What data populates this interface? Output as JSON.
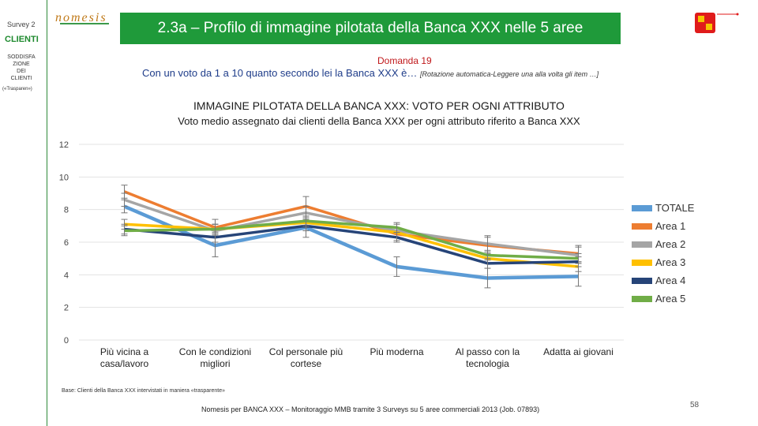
{
  "sidebar": {
    "survey": "Survey 2",
    "clienti": "CLIENTI",
    "soddisfazione": "SODDISFA\nZIONE\nDEI\nCLIENTI",
    "trasparenza": "(«Trasparen»)"
  },
  "header": {
    "logo_text": "nomesis",
    "title": "2.3a – Profilo di immagine pilotata della Banca XXX nelle 5 aree"
  },
  "question": {
    "label": "Domanda 19",
    "text": "Con un voto da 1 a 10 quanto secondo lei la Banca XXX è…",
    "note": "[Rotazione automatica-Leggere una alla volta gli item …]"
  },
  "footer": {
    "base": "Base: Clienti della Banca XXX intervistati in maniera «trasparente»",
    "credit": "Nomesis per BANCA XXX – Monitoraggio MMB tramite 3 Surveys su 5 aree commerciali 2013 (Job. 07893)",
    "page": "58"
  },
  "colors": {
    "accent": "#1f9a3a",
    "question": "#c0171a"
  },
  "chart_data": {
    "type": "line",
    "title": "IMMAGINE PILOTATA DELLA BANCA XXX: VOTO PER OGNI ATTRIBUTO",
    "subtitle": "Voto medio assegnato dai clienti della Banca XXX per ogni attributo riferito a Banca XXX",
    "categories": [
      "Più vicina a casa/lavoro",
      "Con le condizioni migliori",
      "Col personale più cortese",
      "Più moderna",
      "Al passo con la tecnologia",
      "Adatta ai giovani"
    ],
    "ylim": [
      0,
      12
    ],
    "yticks": [
      0,
      2,
      4,
      6,
      8,
      10,
      12
    ],
    "legend_position": "right",
    "series": [
      {
        "name": "TOTALE",
        "color": "#5b9bd5",
        "values": [
          8.2,
          5.8,
          6.9,
          4.5,
          3.8,
          3.9
        ],
        "error": [
          0.4,
          0.7,
          0.6,
          0.6,
          0.6,
          0.6
        ]
      },
      {
        "name": "Area 1",
        "color": "#ed7d31",
        "values": [
          9.1,
          6.9,
          8.2,
          6.5,
          5.8,
          5.3
        ],
        "error": [
          0.4,
          0.5,
          0.6,
          0.4,
          0.5,
          0.5
        ]
      },
      {
        "name": "Area 2",
        "color": "#a5a5a5",
        "values": [
          8.6,
          6.7,
          7.8,
          6.7,
          5.9,
          5.2
        ],
        "error": [
          0.4,
          0.4,
          0.4,
          0.4,
          0.5,
          0.5
        ]
      },
      {
        "name": "Area 3",
        "color": "#ffc000",
        "values": [
          7.1,
          6.8,
          7.2,
          6.6,
          5.0,
          4.5
        ],
        "error": [
          0.3,
          0.3,
          0.3,
          0.3,
          0.3,
          0.3
        ]
      },
      {
        "name": "Area 4",
        "color": "#264478",
        "values": [
          6.8,
          6.3,
          7.0,
          6.3,
          4.7,
          4.8
        ],
        "error": [
          0.3,
          0.3,
          0.3,
          0.3,
          0.3,
          0.3
        ]
      },
      {
        "name": "Area 5",
        "color": "#70ad47",
        "values": [
          6.7,
          6.8,
          7.3,
          6.9,
          5.2,
          5.0
        ],
        "error": [
          0.3,
          0.3,
          0.3,
          0.3,
          0.3,
          0.3
        ]
      }
    ]
  }
}
